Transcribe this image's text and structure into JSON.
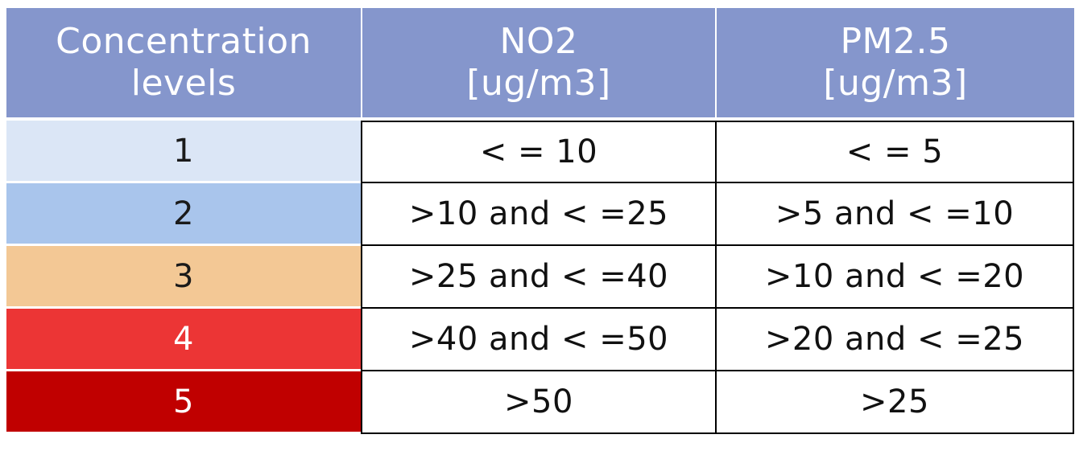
{
  "table": {
    "headers": [
      [
        "Concentration",
        "levels"
      ],
      [
        "NO2",
        "[ug/m3]"
      ],
      [
        "PM2.5",
        "[ug/m3]"
      ]
    ],
    "rows": [
      {
        "level": "1",
        "no2": "< = 10",
        "pm25": "< = 5"
      },
      {
        "level": "2",
        "no2": ">10 and < =25",
        "pm25": ">5 and < =10"
      },
      {
        "level": "3",
        "no2": ">25 and < =40",
        "pm25": ">10 and < =20"
      },
      {
        "level": "4",
        "no2": ">40 and < =50",
        "pm25": ">20 and < =25"
      },
      {
        "level": "5",
        "no2": ">50",
        "pm25": ">25"
      }
    ]
  },
  "colors": {
    "header_bg": "#8596cc",
    "level_1": "#dbe6f6",
    "level_2": "#a9c5ec",
    "level_3": "#f3c895",
    "level_4": "#ec3535",
    "level_5": "#c00000"
  }
}
